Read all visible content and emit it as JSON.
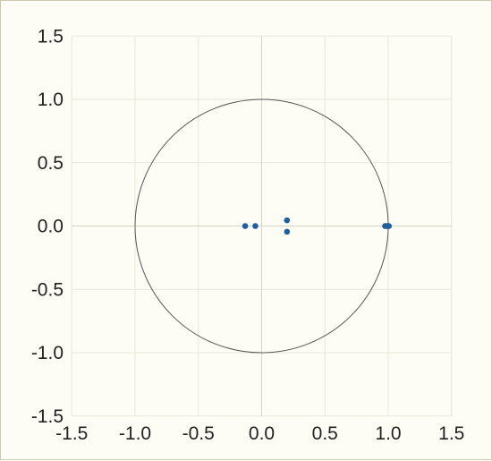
{
  "chart_data": {
    "type": "scatter",
    "title": "",
    "xlabel": "",
    "ylabel": "",
    "xlim": [
      -1.5,
      1.5
    ],
    "ylim": [
      -1.5,
      1.5
    ],
    "grid": true,
    "x_ticks": [
      "-1.5",
      "-1.0",
      "-0.5",
      "0.0",
      "0.5",
      "1.0",
      "1.5"
    ],
    "y_ticks": [
      "1.5",
      "1.0",
      "0.5",
      "0.0",
      "-0.5",
      "-1.0",
      "-1.5"
    ],
    "reference_circle": {
      "center": [
        0,
        0
      ],
      "radius": 1.0,
      "color": "#555555"
    },
    "series": [
      {
        "color": "#1f5f9e",
        "points": [
          {
            "x": -0.13,
            "y": 0.0
          },
          {
            "x": -0.05,
            "y": 0.0
          },
          {
            "x": 0.2,
            "y": 0.045
          },
          {
            "x": 0.2,
            "y": -0.045
          },
          {
            "x": 0.975,
            "y": 0.0
          },
          {
            "x": 0.985,
            "y": 0.0
          },
          {
            "x": 0.993,
            "y": 0.0
          },
          {
            "x": 1.0,
            "y": 0.0
          },
          {
            "x": 1.005,
            "y": 0.0
          }
        ]
      }
    ]
  }
}
